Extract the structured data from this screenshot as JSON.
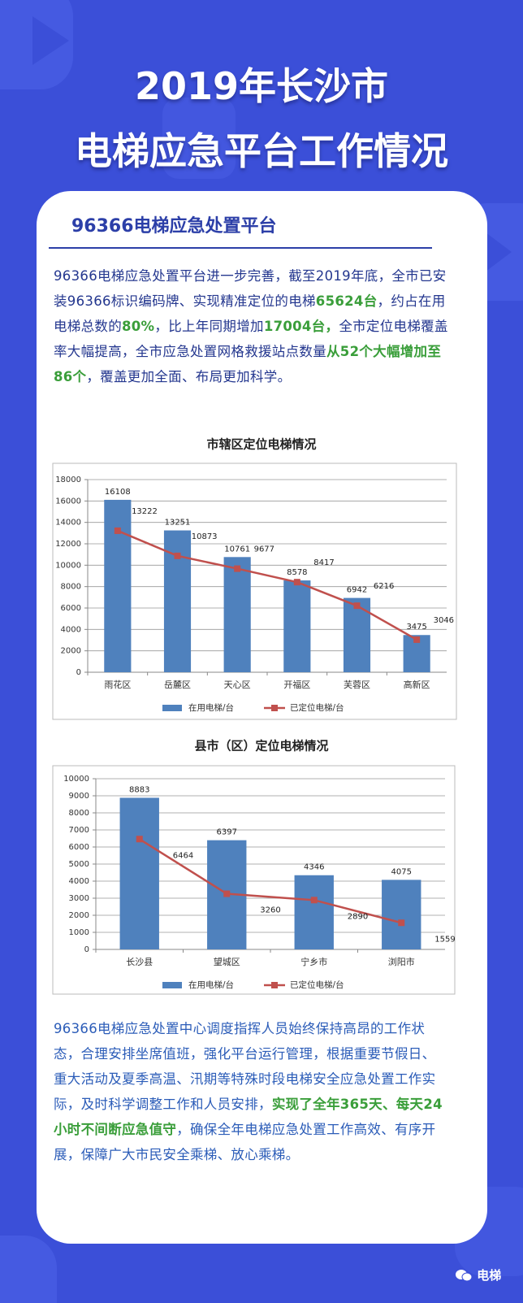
{
  "header": {
    "title_line1": "2019年长沙市",
    "title_line2": "电梯应急平台工作情况"
  },
  "section": {
    "title": "96366电梯应急处置平台"
  },
  "paragraphs": [
    {
      "color": "#24378f",
      "segments": [
        {
          "text": "96366电梯应急处置平台进一步完善，截至2019年底，全市已安装96366标识编码牌、实现精准定位的电梯"
        },
        {
          "text": "65624台",
          "color": "#3a9e3a"
        },
        {
          "text": "，约占在用电梯总数的"
        },
        {
          "text": "80%",
          "color": "#3a9e3a"
        },
        {
          "text": "，比上年同期增加"
        },
        {
          "text": "17004台，",
          "color": "#3a9e3a"
        },
        {
          "text": "全市定位电梯覆盖率大幅提高，全市应急处置网格救援站点数量"
        },
        {
          "text": "从52个大幅增加至86个",
          "color": "#3a9e3a"
        },
        {
          "text": "，覆盖更加全面、布局更加科学。"
        }
      ]
    },
    {
      "color": "#2b5cb8",
      "segments": [
        {
          "text": "96366电梯应急处置中心调度指挥人员始终保持高昂的工作状态，合理安排坐席值班，强化平台运行管理，根据重要节假日、重大活动及夏季高温、汛期等特殊时段电梯安全应急处置工作实际，及时科学调整工作和人员安排，"
        },
        {
          "text": "实现了全年365天、每天24小时不间断应急值守",
          "color": "#3a9e3a"
        },
        {
          "text": "，确保全年电梯应急处置工作高效、有序开展，保障广大市民安全乘梯、放心乘梯。"
        }
      ]
    }
  ],
  "chart_data": [
    {
      "type": "bar",
      "title": "市辖区定位电梯情况",
      "categories": [
        "雨花区",
        "岳麓区",
        "天心区",
        "开福区",
        "芙蓉区",
        "高新区"
      ],
      "series": [
        {
          "name": "在用电梯/台",
          "type": "bar",
          "color": "#4f81bd",
          "values": [
            16108,
            13251,
            10761,
            8578,
            6942,
            3475
          ]
        },
        {
          "name": "已定位电梯/台",
          "type": "line",
          "color": "#c0504d",
          "values": [
            13222,
            10873,
            9677,
            8417,
            6216,
            3046
          ]
        }
      ],
      "ylim": [
        0,
        18000
      ],
      "yticks": [
        0,
        2000,
        4000,
        6000,
        8000,
        10000,
        12000,
        14000,
        16000,
        18000
      ],
      "grid": true,
      "legend": "bottom"
    },
    {
      "type": "bar",
      "title": "县市（区）定位电梯情况",
      "categories": [
        "长沙县",
        "望城区",
        "宁乡市",
        "浏阳市"
      ],
      "series": [
        {
          "name": "在用电梯/台",
          "type": "bar",
          "color": "#4f81bd",
          "values": [
            8883,
            6397,
            4346,
            4075
          ]
        },
        {
          "name": "已定位电梯/台",
          "type": "line",
          "color": "#c0504d",
          "values": [
            6464,
            3260,
            2890,
            1559
          ]
        }
      ],
      "ylim": [
        0,
        10000
      ],
      "yticks": [
        0,
        1000,
        2000,
        3000,
        4000,
        5000,
        6000,
        7000,
        8000,
        9000,
        10000
      ],
      "grid": true,
      "legend": "bottom"
    }
  ],
  "footer": {
    "brand": "电梯"
  }
}
